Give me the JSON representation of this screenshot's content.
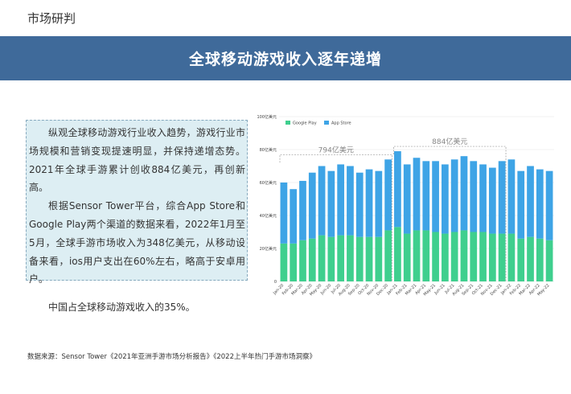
{
  "header": {
    "section": "市场研判"
  },
  "banner": {
    "title": "全球移动游戏收入逐年递增"
  },
  "text": {
    "p1": "纵观全球移动游戏行业收入趋势，游戏行业市场规模和营销变现提速明显，并保持递增态势。2021年全球手游累计创收884亿美元，再创新高。",
    "p2": "根据Sensor Tower平台，综合App Store和Google Play两个渠道的数据来看，2022年1月至5月，全球手游市场收入为348亿美元，从移动设备来看，ios用户支出在60%左右，略高于安卓用户。",
    "p3": "中国占全球移动游戏收入的35%。"
  },
  "source": "数据来源：Sensor Tower《2021年亚洲手游市场分析报告》《2022上半年热门手游市场洞察》",
  "colors": {
    "google_play": "#3fcf8e",
    "app_store": "#3ea4e6",
    "banner": "#3f6a9a"
  },
  "chart_data": {
    "type": "bar",
    "stacked": true,
    "categories": [
      "Jan-20",
      "Feb-20",
      "Mar-20",
      "Apr-20",
      "May-20",
      "Jun-20",
      "Jul-20",
      "Aug-20",
      "Sep-20",
      "Oct-20",
      "Nov-20",
      "Dec-20",
      "Jan-21",
      "Feb-21",
      "Mar-21",
      "Apr-21",
      "May-21",
      "Jun-21",
      "Jul-21",
      "Aug-21",
      "Sep-21",
      "Oct-21",
      "Nov-21",
      "Dec-21",
      "Jan-22",
      "Feb-22",
      "Mar-22",
      "Apr-22",
      "May-22"
    ],
    "series": [
      {
        "name": "Google Play",
        "values": [
          23,
          23,
          25,
          26,
          28,
          27,
          28,
          28,
          27,
          27,
          27,
          31,
          33,
          29,
          31,
          31,
          30,
          29,
          30,
          31,
          30,
          30,
          29,
          29,
          29,
          26,
          27,
          26,
          25
        ]
      },
      {
        "name": "App Store",
        "values": [
          37,
          33,
          36,
          40,
          42,
          40,
          43,
          42,
          39,
          41,
          40,
          43,
          46,
          42,
          44,
          42,
          43,
          42,
          44,
          45,
          43,
          41,
          40,
          44,
          45,
          41,
          43,
          42,
          42
        ]
      }
    ],
    "ylim": [
      0,
      100
    ],
    "yticks": [
      0,
      20,
      40,
      60,
      80,
      100
    ],
    "ytick_labels": [
      "0",
      "20亿美元",
      "40亿美元",
      "60亿美元",
      "80亿美元",
      "100亿美元"
    ],
    "legend_position": "top-left",
    "annotations": [
      {
        "label": "794亿美元",
        "from": "Jan-20",
        "to": "Dec-20"
      },
      {
        "label": "884亿美元",
        "from": "Jan-21",
        "to": "Dec-21"
      }
    ],
    "gridlines": true
  }
}
